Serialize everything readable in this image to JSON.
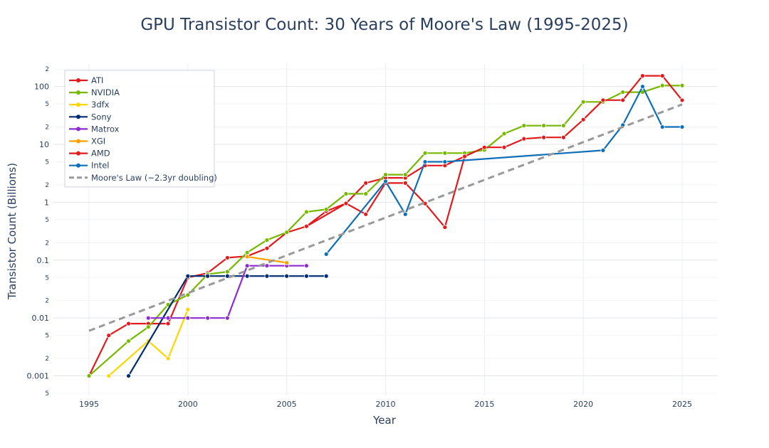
{
  "chart_data": {
    "type": "line",
    "title": "GPU Transistor Count: 30 Years of Moore's Law (1995-2025)",
    "xlabel": "Year",
    "ylabel": "Transistor Count (Billions)",
    "y_scale": "log",
    "xlim": [
      1993.2,
      2026.8
    ],
    "ylim": [
      0.00046,
      245
    ],
    "x_ticks": [
      1995,
      2000,
      2005,
      2010,
      2015,
      2020,
      2025
    ],
    "y_major_ticks": [
      {
        "value": 0.001,
        "label": "0.001"
      },
      {
        "value": 0.01,
        "label": "0.01"
      },
      {
        "value": 0.1,
        "label": "0.1"
      },
      {
        "value": 1,
        "label": "1"
      },
      {
        "value": 10,
        "label": "10"
      },
      {
        "value": 100,
        "label": "100"
      }
    ],
    "y_minor_ticks": [
      {
        "value": 0.0005,
        "label": "5"
      },
      {
        "value": 0.002,
        "label": "2"
      },
      {
        "value": 0.005,
        "label": "5"
      },
      {
        "value": 0.02,
        "label": "2"
      },
      {
        "value": 0.05,
        "label": "5"
      },
      {
        "value": 0.2,
        "label": "2"
      },
      {
        "value": 0.5,
        "label": "5"
      },
      {
        "value": 2,
        "label": "2"
      },
      {
        "value": 5,
        "label": "5"
      },
      {
        "value": 20,
        "label": "2"
      },
      {
        "value": 50,
        "label": "5"
      },
      {
        "value": 200,
        "label": "2"
      }
    ],
    "grid": true,
    "legend_position": "top-left",
    "series": [
      {
        "name": "ATI",
        "color": "#e31a1c",
        "dash": false,
        "x": [
          1995,
          1996,
          1997,
          1998,
          1999,
          2000,
          2001,
          2002,
          2003,
          2004,
          2005,
          2006,
          2007,
          2008,
          2009,
          2010,
          2011,
          2012,
          2013,
          2014,
          2015
        ],
        "y": [
          0.001,
          0.005,
          0.008,
          0.008,
          0.008,
          0.05,
          0.06,
          0.11,
          0.117,
          0.16,
          0.3,
          0.384,
          0.7,
          0.956,
          2.15,
          2.64,
          2.64,
          4.31,
          4.31,
          6.2,
          8.9
        ]
      },
      {
        "name": "NVIDIA",
        "color": "#76b900",
        "dash": false,
        "x": [
          1995,
          1997,
          1998,
          1999,
          2000,
          2001,
          2002,
          2003,
          2004,
          2005,
          2006,
          2007,
          2008,
          2009,
          2010,
          2011,
          2012,
          2013,
          2014,
          2015,
          2016,
          2017,
          2018,
          2019,
          2020,
          2021,
          2022,
          2023,
          2024,
          2025
        ],
        "y": [
          0.001,
          0.004,
          0.007,
          0.017,
          0.025,
          0.057,
          0.063,
          0.135,
          0.222,
          0.302,
          0.681,
          0.754,
          1.4,
          1.4,
          3.0,
          3.0,
          7.08,
          7.08,
          7.08,
          8.0,
          15.3,
          21.1,
          21.1,
          21.1,
          54.2,
          54.2,
          80,
          80,
          104,
          104
        ]
      },
      {
        "name": "3dfx",
        "color": "#ffd500",
        "dash": false,
        "x": [
          1996,
          1998,
          1999,
          2000
        ],
        "y": [
          0.001,
          0.004,
          0.002,
          0.014
        ]
      },
      {
        "name": "Sony",
        "color": "#002d72",
        "dash": false,
        "x": [
          1997,
          2000,
          2001,
          2002,
          2003,
          2004,
          2005,
          2006,
          2007
        ],
        "y": [
          0.001,
          0.053,
          0.053,
          0.053,
          0.053,
          0.053,
          0.053,
          0.053,
          0.053
        ]
      },
      {
        "name": "Matrox",
        "color": "#8e2bd1",
        "dash": false,
        "x": [
          1998,
          1999,
          2000,
          2001,
          2002,
          2003,
          2004,
          2005,
          2006
        ],
        "y": [
          0.01,
          0.01,
          0.01,
          0.01,
          0.01,
          0.08,
          0.08,
          0.08,
          0.08
        ]
      },
      {
        "name": "XGI",
        "color": "#ffa000",
        "dash": false,
        "x": [
          2003,
          2005
        ],
        "y": [
          0.115,
          0.09
        ]
      },
      {
        "name": "AMD",
        "color": "#e31a1c",
        "dash": false,
        "x": [
          2006,
          2008,
          2009,
          2010,
          2011,
          2012,
          2013,
          2014,
          2015,
          2016,
          2017,
          2018,
          2019,
          2020,
          2021,
          2022,
          2023,
          2024,
          2025
        ],
        "y": [
          0.384,
          0.956,
          0.62,
          2.15,
          2.15,
          0.95,
          0.37,
          6.2,
          8.9,
          8.9,
          12.5,
          13.2,
          13.2,
          26.8,
          58.2,
          58.2,
          153,
          153,
          58
        ]
      },
      {
        "name": "Intel",
        "color": "#0e6eb8",
        "dash": false,
        "x": [
          2007,
          2010,
          2011,
          2012,
          2013,
          2021,
          2022,
          2023,
          2024,
          2025
        ],
        "y": [
          0.127,
          2.3,
          0.62,
          5.0,
          5.0,
          7.9,
          21.6,
          100,
          20,
          20
        ]
      },
      {
        "name": "Moore's Law (~2.3yr doubling)",
        "color": "#999999",
        "dash": true,
        "x": [
          1995,
          2025
        ],
        "y": [
          0.006,
          49.1
        ]
      }
    ]
  }
}
